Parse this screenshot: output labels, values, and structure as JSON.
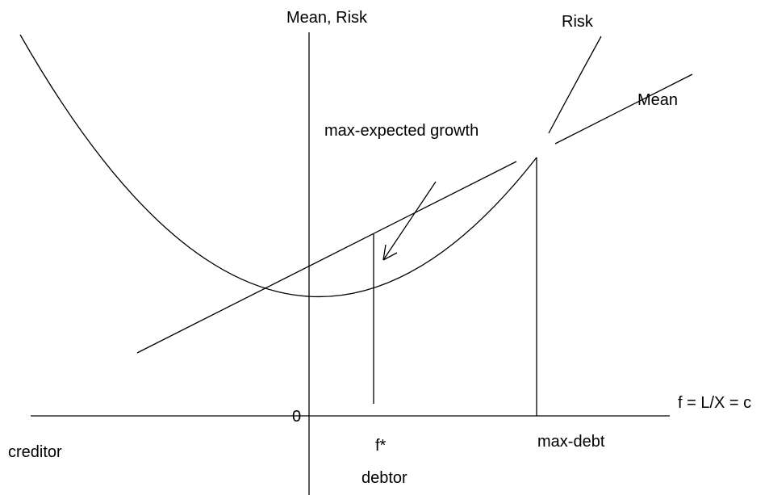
{
  "y_axis_label": "Mean, Risk",
  "risk_label": "Risk",
  "mean_label": "Mean",
  "annotation": "max-expected growth",
  "origin_label": "0",
  "x_axis_label": "f = L/X = c",
  "creditor_label": "creditor",
  "f_star_label": "f*",
  "debtor_label": "debtor",
  "max_debt_label": "max-debt"
}
